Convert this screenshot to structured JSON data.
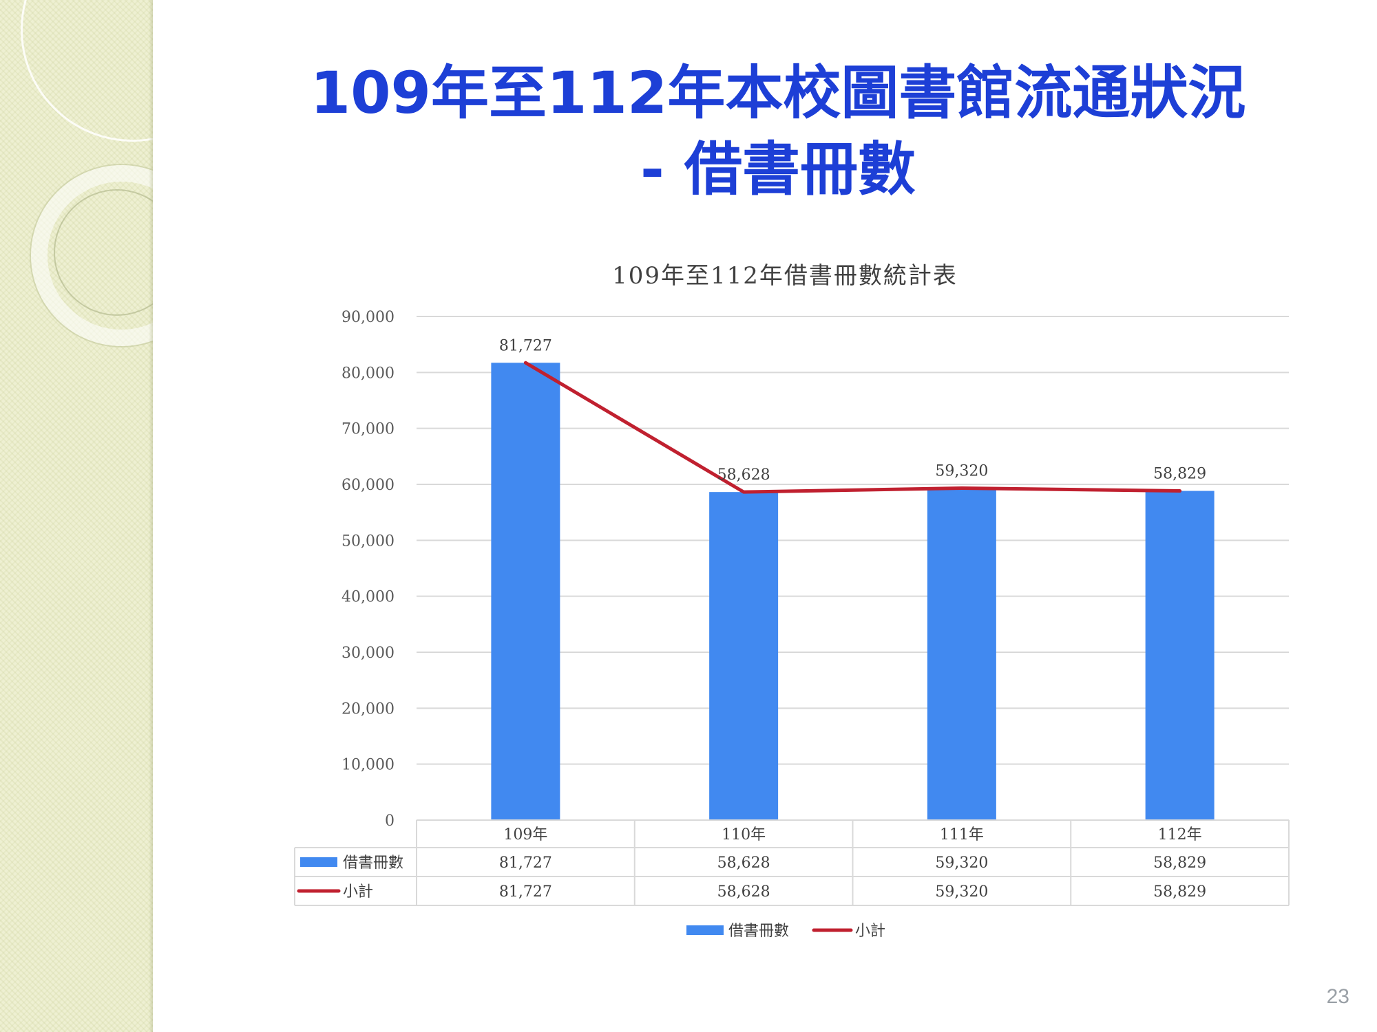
{
  "slide": {
    "title_line1": "109年至112年本校圖書館流通狀況",
    "title_line2": "- 借書冊數",
    "page_number": "23"
  },
  "chart_data": {
    "type": "bar",
    "title": "109年至112年借書冊數統計表",
    "categories": [
      "109年",
      "110年",
      "111年",
      "112年"
    ],
    "series": [
      {
        "name": "借書冊數",
        "kind": "bar",
        "color": "#4189f0",
        "values": [
          81727,
          58628,
          59320,
          58829
        ]
      },
      {
        "name": "小計",
        "kind": "line",
        "color": "#c0202f",
        "values": [
          81727,
          58628,
          59320,
          58829
        ]
      }
    ],
    "data_labels": [
      "81,727",
      "58,628",
      "59,320",
      "58,829"
    ],
    "data_table": [
      {
        "label": "借書冊數",
        "cells": [
          "81,727",
          "58,628",
          "59,320",
          "58,829"
        ]
      },
      {
        "label": "小計",
        "cells": [
          "81,727",
          "58,628",
          "59,320",
          "58,829"
        ]
      }
    ],
    "ylim": [
      0,
      90000
    ],
    "yticks": [
      0,
      10000,
      20000,
      30000,
      40000,
      50000,
      60000,
      70000,
      80000,
      90000
    ],
    "ytick_labels": [
      "0",
      "10,000",
      "20,000",
      "30,000",
      "40,000",
      "50,000",
      "60,000",
      "70,000",
      "80,000",
      "90,000"
    ],
    "grid": true,
    "legend_position": "bottom",
    "xlabel": "",
    "ylabel": ""
  }
}
